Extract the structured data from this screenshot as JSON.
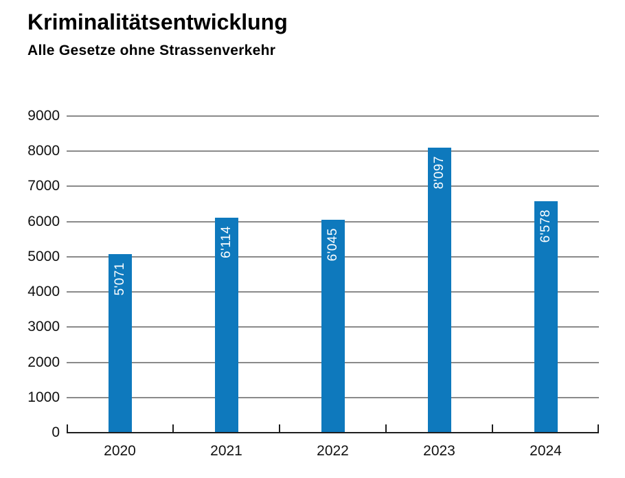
{
  "page": {
    "background": "#ffffff"
  },
  "chart_data": {
    "type": "bar",
    "title": "Kriminalitätsentwicklung",
    "subtitle": "Alle Gesetze ohne Strassenverkehr",
    "categories": [
      "2020",
      "2021",
      "2022",
      "2023",
      "2024"
    ],
    "values": [
      5071,
      6114,
      6045,
      8097,
      6578
    ],
    "value_labels": [
      "5'071",
      "6'114",
      "6'045",
      "8'097",
      "6'578"
    ],
    "ylim": [
      0,
      9000
    ],
    "yticks": [
      0,
      1000,
      2000,
      3000,
      4000,
      5000,
      6000,
      7000,
      8000,
      9000
    ],
    "ytick_labels": [
      "0",
      "1000",
      "2000",
      "3000",
      "4000",
      "5000",
      "6000",
      "7000",
      "8000",
      "9000"
    ],
    "grid": true,
    "legend": "none",
    "xlabel": "",
    "ylabel": "",
    "bar_color": "#0e79bd",
    "value_label_color": "#ffffff",
    "gridline_color": "#8a8a8a",
    "axis_color": "#1e1e1e"
  }
}
